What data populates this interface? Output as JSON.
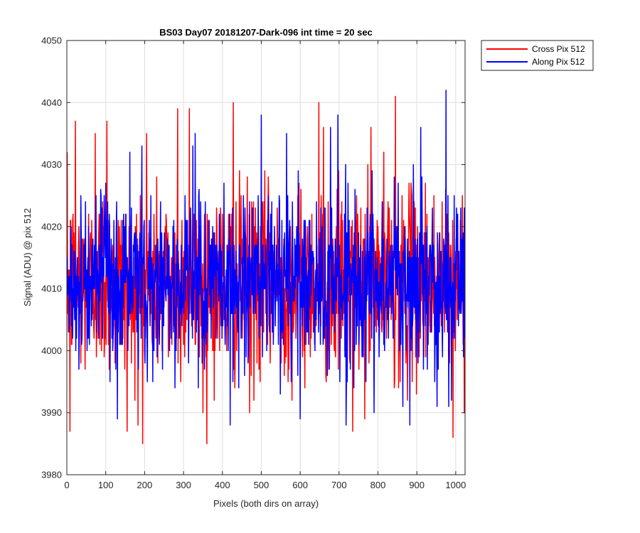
{
  "chart_data": {
    "type": "line",
    "title": "BS03 Day07 20181207-Dark-096 int time = 20 sec",
    "xlabel": "Pixels (both dirs on array)",
    "ylabel": "Signal (ADU) @ pix 512",
    "xlim": [
      0,
      1024
    ],
    "ylim": [
      3980,
      4050
    ],
    "xticks": [
      0,
      100,
      200,
      300,
      400,
      500,
      600,
      700,
      800,
      900,
      1000
    ],
    "yticks": [
      3980,
      3990,
      4000,
      4010,
      4020,
      4030,
      4040,
      4050
    ],
    "grid": true,
    "legend_position": "outside top-right",
    "series": [
      {
        "name": "Cross Pix 512",
        "color": "#ff0000",
        "x_start": 1,
        "x_step": 1,
        "mean": 4011,
        "std": 7.5,
        "noise_seed": 12345,
        "notable_points": [
          {
            "x": 8,
            "y": 3987
          },
          {
            "x": 22,
            "y": 4037
          },
          {
            "x": 73,
            "y": 4035
          },
          {
            "x": 103,
            "y": 4037
          },
          {
            "x": 155,
            "y": 3987
          },
          {
            "x": 183,
            "y": 3988
          },
          {
            "x": 205,
            "y": 4035
          },
          {
            "x": 285,
            "y": 4039
          },
          {
            "x": 315,
            "y": 4039
          },
          {
            "x": 350,
            "y": 3990
          },
          {
            "x": 428,
            "y": 4040
          },
          {
            "x": 470,
            "y": 3990
          },
          {
            "x": 648,
            "y": 4040
          },
          {
            "x": 660,
            "y": 4036
          },
          {
            "x": 735,
            "y": 3987
          },
          {
            "x": 782,
            "y": 4036
          },
          {
            "x": 845,
            "y": 4041
          },
          {
            "x": 993,
            "y": 3986
          }
        ]
      },
      {
        "name": "Along Pix 512",
        "color": "#0000ff",
        "x_start": 1,
        "x_step": 1,
        "mean": 4011,
        "std": 7,
        "noise_seed": 67890,
        "notable_points": [
          {
            "x": 130,
            "y": 3989
          },
          {
            "x": 193,
            "y": 4033
          },
          {
            "x": 330,
            "y": 4035
          },
          {
            "x": 420,
            "y": 3988
          },
          {
            "x": 500,
            "y": 4038
          },
          {
            "x": 565,
            "y": 4035
          },
          {
            "x": 600,
            "y": 3989
          },
          {
            "x": 697,
            "y": 4038
          },
          {
            "x": 790,
            "y": 3990
          },
          {
            "x": 882,
            "y": 3988
          },
          {
            "x": 910,
            "y": 4036
          },
          {
            "x": 975,
            "y": 4042
          }
        ]
      }
    ]
  }
}
